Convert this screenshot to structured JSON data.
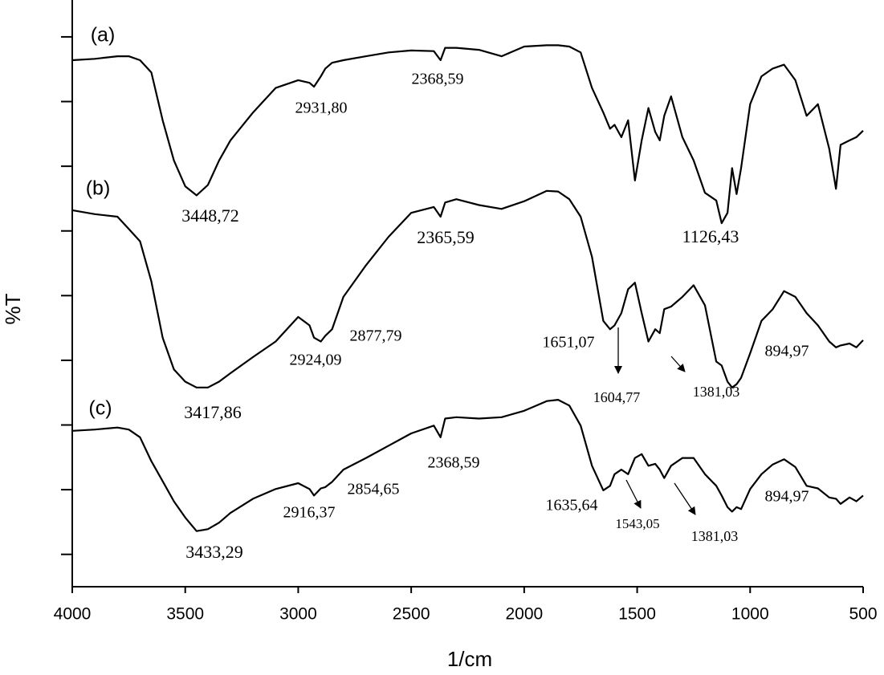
{
  "chart_data": {
    "type": "line",
    "x_label": "1/cm",
    "y_label": "%T",
    "xlim": [
      4000,
      500
    ],
    "xticks": [
      4000,
      3500,
      3000,
      2500,
      2000,
      1500,
      1000,
      500
    ],
    "ylim": [
      0.5,
      9.57
    ],
    "yticks": [
      1,
      2,
      3,
      4,
      5,
      6,
      7,
      8,
      9
    ],
    "ytick_labels_shown": false,
    "grid": false,
    "x": [
      4000,
      3900,
      3800,
      3750,
      3700,
      3650,
      3600,
      3550,
      3500,
      3450,
      3400,
      3350,
      3300,
      3200,
      3100,
      3000,
      2950,
      2930,
      2900,
      2880,
      2850,
      2800,
      2700,
      2600,
      2500,
      2400,
      2370,
      2350,
      2300,
      2200,
      2100,
      2000,
      1900,
      1850,
      1800,
      1750,
      1700,
      1650,
      1620,
      1600,
      1570,
      1540,
      1510,
      1480,
      1450,
      1420,
      1400,
      1380,
      1350,
      1300,
      1250,
      1200,
      1150,
      1126,
      1100,
      1080,
      1060,
      1040,
      1000,
      950,
      900,
      850,
      800,
      750,
      700,
      650,
      620,
      600,
      560,
      530,
      500
    ],
    "series": [
      {
        "name": "(a)",
        "color": "#000000",
        "values": [
          8.64,
          8.66,
          8.7,
          8.7,
          8.64,
          8.45,
          7.71,
          7.09,
          6.69,
          6.55,
          6.71,
          7.09,
          7.4,
          7.83,
          8.21,
          8.33,
          8.29,
          8.23,
          8.39,
          8.51,
          8.6,
          8.64,
          8.7,
          8.76,
          8.79,
          8.78,
          8.64,
          8.83,
          8.83,
          8.8,
          8.7,
          8.85,
          8.87,
          8.87,
          8.85,
          8.76,
          8.21,
          7.83,
          7.58,
          7.64,
          7.45,
          7.71,
          6.78,
          7.4,
          7.9,
          7.53,
          7.4,
          7.78,
          8.08,
          7.45,
          7.09,
          6.59,
          6.47,
          6.12,
          6.28,
          6.97,
          6.57,
          6.97,
          7.96,
          8.39,
          8.51,
          8.57,
          8.33,
          7.78,
          7.96,
          7.27,
          6.65,
          7.33,
          7.4,
          7.45,
          7.55
        ],
        "annotations": [
          "3448,72",
          "2931,80",
          "2368,59",
          "1126,43"
        ]
      },
      {
        "name": "(b)",
        "color": "#000000",
        "values": [
          6.32,
          6.26,
          6.22,
          6.03,
          5.84,
          5.22,
          4.35,
          3.86,
          3.67,
          3.58,
          3.58,
          3.67,
          3.8,
          4.05,
          4.29,
          4.67,
          4.54,
          4.35,
          4.29,
          4.38,
          4.48,
          4.98,
          5.47,
          5.91,
          6.28,
          6.37,
          6.22,
          6.44,
          6.49,
          6.4,
          6.34,
          6.46,
          6.62,
          6.61,
          6.49,
          6.22,
          5.6,
          4.61,
          4.48,
          4.54,
          4.73,
          5.1,
          5.2,
          4.73,
          4.29,
          4.48,
          4.42,
          4.79,
          4.83,
          4.98,
          5.16,
          4.85,
          3.98,
          3.92,
          3.67,
          3.58,
          3.63,
          3.73,
          4.11,
          4.61,
          4.79,
          5.07,
          4.98,
          4.73,
          4.54,
          4.29,
          4.2,
          4.23,
          4.26,
          4.2,
          4.31
        ],
        "annotations": [
          "3417,86",
          "2924,09",
          "2877,79",
          "2365,59",
          "1651,07",
          "1604,77",
          "1381,03",
          "894,97"
        ]
      },
      {
        "name": "(c)",
        "color": "#000000",
        "values": [
          2.91,
          2.93,
          2.96,
          2.93,
          2.81,
          2.44,
          2.13,
          1.82,
          1.57,
          1.36,
          1.39,
          1.49,
          1.64,
          1.86,
          2.01,
          2.1,
          2.01,
          1.91,
          2.02,
          2.04,
          2.12,
          2.31,
          2.49,
          2.68,
          2.87,
          2.99,
          2.81,
          3.1,
          3.12,
          3.1,
          3.12,
          3.22,
          3.37,
          3.39,
          3.3,
          2.99,
          2.37,
          1.99,
          2.06,
          2.24,
          2.31,
          2.24,
          2.49,
          2.55,
          2.37,
          2.4,
          2.31,
          2.18,
          2.37,
          2.49,
          2.49,
          2.24,
          2.06,
          1.91,
          1.73,
          1.66,
          1.73,
          1.7,
          2.01,
          2.24,
          2.39,
          2.47,
          2.35,
          2.06,
          2.02,
          1.88,
          1.86,
          1.78,
          1.88,
          1.82,
          1.91
        ],
        "annotations": [
          "3433,29",
          "2916,37",
          "2854,65",
          "2368,59",
          "1635,64",
          "1543,05",
          "1381,03",
          "894,97"
        ]
      }
    ]
  }
}
